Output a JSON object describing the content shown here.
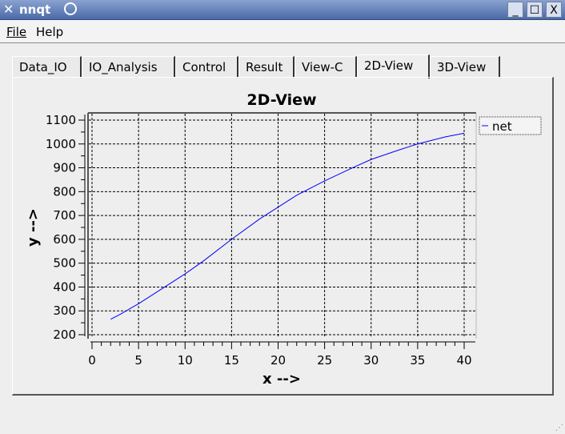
{
  "window": {
    "title": "nnqt",
    "minimize": "_",
    "maximize": "☐",
    "close": "X"
  },
  "menu": {
    "file": "File",
    "help": "Help"
  },
  "tabs": [
    {
      "label": "Data_IO"
    },
    {
      "label": "IO_Analysis"
    },
    {
      "label": "Control"
    },
    {
      "label": "Result"
    },
    {
      "label": "View-C"
    },
    {
      "label": "2D-View",
      "active": true
    },
    {
      "label": "3D-View"
    }
  ],
  "chart_data": {
    "type": "line",
    "title": "2D-View",
    "xlabel": "x -->",
    "ylabel": "y -->",
    "xlim": [
      0,
      40
    ],
    "ylim": [
      200,
      1100
    ],
    "xticks": [
      0,
      5,
      10,
      15,
      20,
      25,
      30,
      35,
      40
    ],
    "yticks": [
      200,
      300,
      400,
      500,
      600,
      700,
      800,
      900,
      1000,
      1100
    ],
    "grid": true,
    "legend": "right",
    "series": [
      {
        "name": "net",
        "color": "#0000ff",
        "x": [
          2,
          3,
          5,
          7,
          10,
          12,
          15,
          18,
          20,
          22,
          25,
          28,
          30,
          33,
          35,
          38,
          40
        ],
        "y": [
          265,
          285,
          330,
          380,
          455,
          510,
          600,
          685,
          735,
          785,
          845,
          900,
          935,
          975,
          1000,
          1030,
          1045
        ]
      }
    ]
  }
}
